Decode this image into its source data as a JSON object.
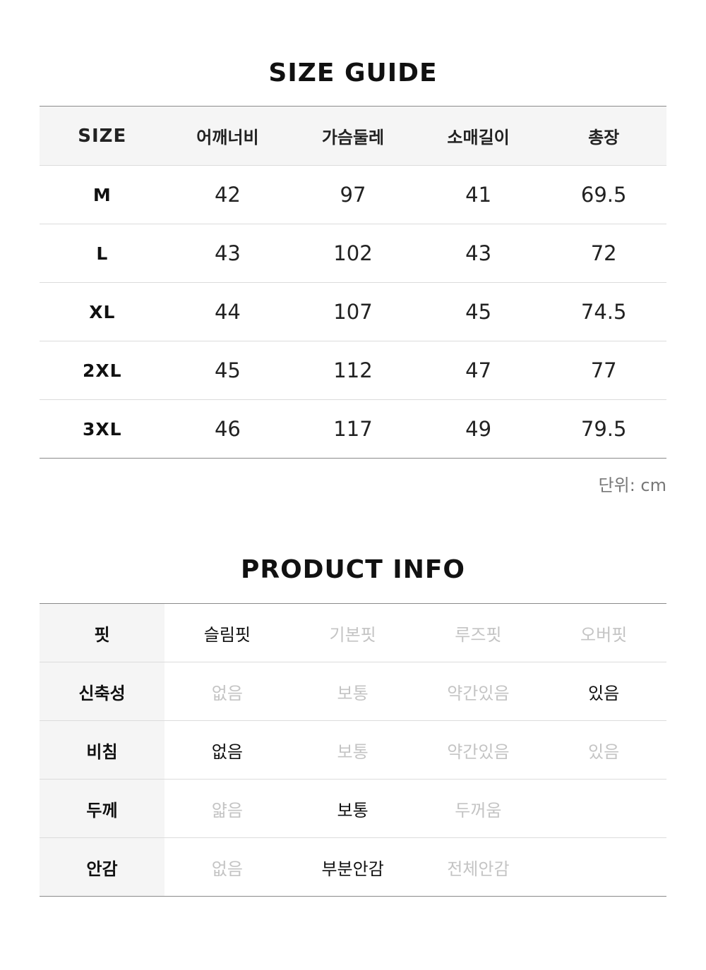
{
  "size_guide": {
    "title": "SIZE GUIDE",
    "headers": [
      "SIZE",
      "어깨너비",
      "가슴둘레",
      "소매길이",
      "총장"
    ],
    "rows": [
      [
        "M",
        "42",
        "97",
        "41",
        "69.5"
      ],
      [
        "L",
        "43",
        "102",
        "43",
        "72"
      ],
      [
        "XL",
        "44",
        "107",
        "45",
        "74.5"
      ],
      [
        "2XL",
        "45",
        "112",
        "47",
        "77"
      ],
      [
        "3XL",
        "46",
        "117",
        "49",
        "79.5"
      ]
    ],
    "unit_note": "단위: cm"
  },
  "product_info": {
    "title": "PRODUCT INFO",
    "rows": [
      {
        "label": "핏",
        "options": [
          "슬림핏",
          "기본핏",
          "루즈핏",
          "오버핏"
        ],
        "selected": [
          "슬림핏"
        ]
      },
      {
        "label": "신축성",
        "options": [
          "없음",
          "보통",
          "약간있음",
          "있음"
        ],
        "selected": [
          "있음"
        ]
      },
      {
        "label": "비침",
        "options": [
          "없음",
          "보통",
          "약간있음",
          "있음"
        ],
        "selected": [
          "없음"
        ]
      },
      {
        "label": "두께",
        "options": [
          "얇음",
          "보통",
          "두꺼움",
          ""
        ],
        "selected": [
          "보통"
        ]
      },
      {
        "label": "안감",
        "options": [
          "없음",
          "부분안감",
          "전체안감",
          ""
        ],
        "selected": [
          "부분안감"
        ]
      }
    ]
  },
  "colors": {
    "selected_text": "#111111",
    "unselected_text": "#c4c4c4",
    "header_bg": "#f5f5f5"
  }
}
